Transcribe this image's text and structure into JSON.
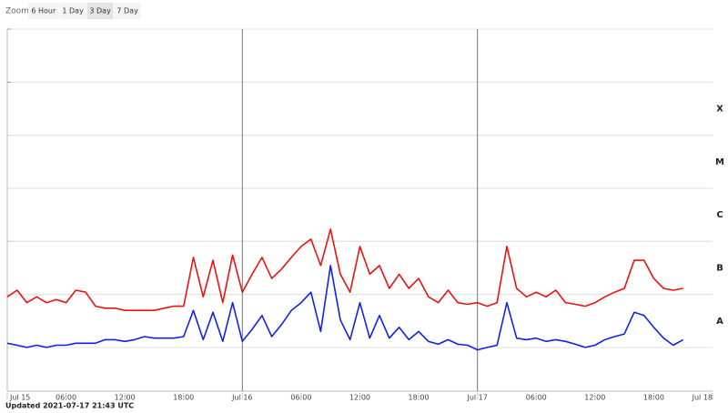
{
  "zoom": {
    "label": "Zoom",
    "options": [
      "6 Hour",
      "1 Day",
      "3 Day",
      "7 Day"
    ],
    "selected": 2
  },
  "chart_data": {
    "type": "line",
    "log_scale": true,
    "grid": true,
    "xlim": [
      0,
      72
    ],
    "ylim": [
      1.5e-09,
      0.01
    ],
    "xticks": [
      {
        "value": 0,
        "label": "Jul 15"
      },
      {
        "value": 6,
        "label": "06:00"
      },
      {
        "value": 12,
        "label": "12:00"
      },
      {
        "value": 18,
        "label": "18:00"
      },
      {
        "value": 24,
        "label": "Jul 16"
      },
      {
        "value": 30,
        "label": "06:00"
      },
      {
        "value": 36,
        "label": "12:00"
      },
      {
        "value": 42,
        "label": "18:00"
      },
      {
        "value": 48,
        "label": "Jul 17"
      },
      {
        "value": 54,
        "label": "06:00"
      },
      {
        "value": 60,
        "label": "12:00"
      },
      {
        "value": 66,
        "label": "18:00"
      },
      {
        "value": 72,
        "label": "Jul 18"
      }
    ],
    "yticks": [
      {
        "value": 1e-08,
        "label": "A"
      },
      {
        "value": 1e-07,
        "label": "B"
      },
      {
        "value": 1e-06,
        "label": "C"
      },
      {
        "value": 1e-05,
        "label": "M"
      },
      {
        "value": 0.0001,
        "label": "X"
      }
    ],
    "x": [
      0,
      1,
      2,
      3,
      4,
      5,
      6,
      7,
      8,
      9,
      10,
      11,
      12,
      13,
      14,
      15,
      16,
      17,
      18,
      19,
      20,
      21,
      22,
      23,
      24,
      25,
      26,
      27,
      28,
      29,
      30,
      31,
      32,
      33,
      34,
      35,
      36,
      37,
      38,
      39,
      40,
      41,
      42,
      43,
      44,
      45,
      46,
      47,
      48,
      49,
      50,
      51,
      52,
      53,
      54,
      55,
      56,
      57,
      58,
      59,
      60,
      61,
      62,
      63,
      64,
      65,
      66,
      67,
      68,
      69
    ],
    "series": [
      {
        "color": "#ee1111",
        "values": [
          9e-08,
          1.2e-07,
          7e-08,
          9e-08,
          7e-08,
          8e-08,
          7e-08,
          1.2e-07,
          1.1e-07,
          6e-08,
          5.5e-08,
          5.5e-08,
          5e-08,
          5e-08,
          5e-08,
          5e-08,
          5.5e-08,
          6e-08,
          6e-08,
          5e-07,
          9e-08,
          4.4e-07,
          7e-08,
          5.5e-07,
          1.1e-07,
          2.4e-07,
          5e-07,
          2e-07,
          3e-07,
          5e-07,
          8e-07,
          1.1e-06,
          3.5e-07,
          1.7e-06,
          2.4e-07,
          1.1e-07,
          8e-07,
          2.4e-07,
          3.5e-07,
          1.3e-07,
          2.4e-07,
          1.3e-07,
          2e-07,
          9e-08,
          7e-08,
          1.2e-07,
          7e-08,
          6.5e-08,
          7e-08,
          6e-08,
          7e-08,
          8e-07,
          1.3e-07,
          9e-08,
          1.1e-07,
          9e-08,
          1.2e-07,
          7e-08,
          6.5e-08,
          6e-08,
          7e-08,
          9e-08,
          1.1e-07,
          1.3e-07,
          4.4e-07,
          4.4e-07,
          2e-07,
          1.3e-07,
          1.2e-07,
          1.3e-07
        ]
      },
      {
        "color": "#1122ee",
        "values": [
          1.2e-08,
          1.1e-08,
          1e-08,
          1.1e-08,
          1e-08,
          1.1e-08,
          1.1e-08,
          1.2e-08,
          1.2e-08,
          1.2e-08,
          1.4e-08,
          1.4e-08,
          1.3e-08,
          1.4e-08,
          1.6e-08,
          1.5e-08,
          1.5e-08,
          1.5e-08,
          1.6e-08,
          5e-08,
          1.4e-08,
          4.6e-08,
          1.3e-08,
          7e-08,
          1.3e-08,
          2.2e-08,
          4e-08,
          1.6e-08,
          2.7e-08,
          5e-08,
          7e-08,
          1.1e-07,
          2e-08,
          3.5e-07,
          3.3e-08,
          1.4e-08,
          7e-08,
          1.5e-08,
          4e-08,
          1.5e-08,
          2.4e-08,
          1.4e-08,
          2e-08,
          1.3e-08,
          1.15e-08,
          1.4e-08,
          1.15e-08,
          1.1e-08,
          9e-09,
          1e-08,
          1.1e-08,
          7e-08,
          1.5e-08,
          1.4e-08,
          1.5e-08,
          1.3e-08,
          1.4e-08,
          1.3e-08,
          1.15e-08,
          1e-08,
          1.1e-08,
          1.4e-08,
          1.6e-08,
          1.8e-08,
          4.6e-08,
          4e-08,
          2.4e-08,
          1.5e-08,
          1.1e-08,
          1.4e-08
        ]
      }
    ]
  },
  "footer": "Updated 2021-07-17 21:43 UTC"
}
